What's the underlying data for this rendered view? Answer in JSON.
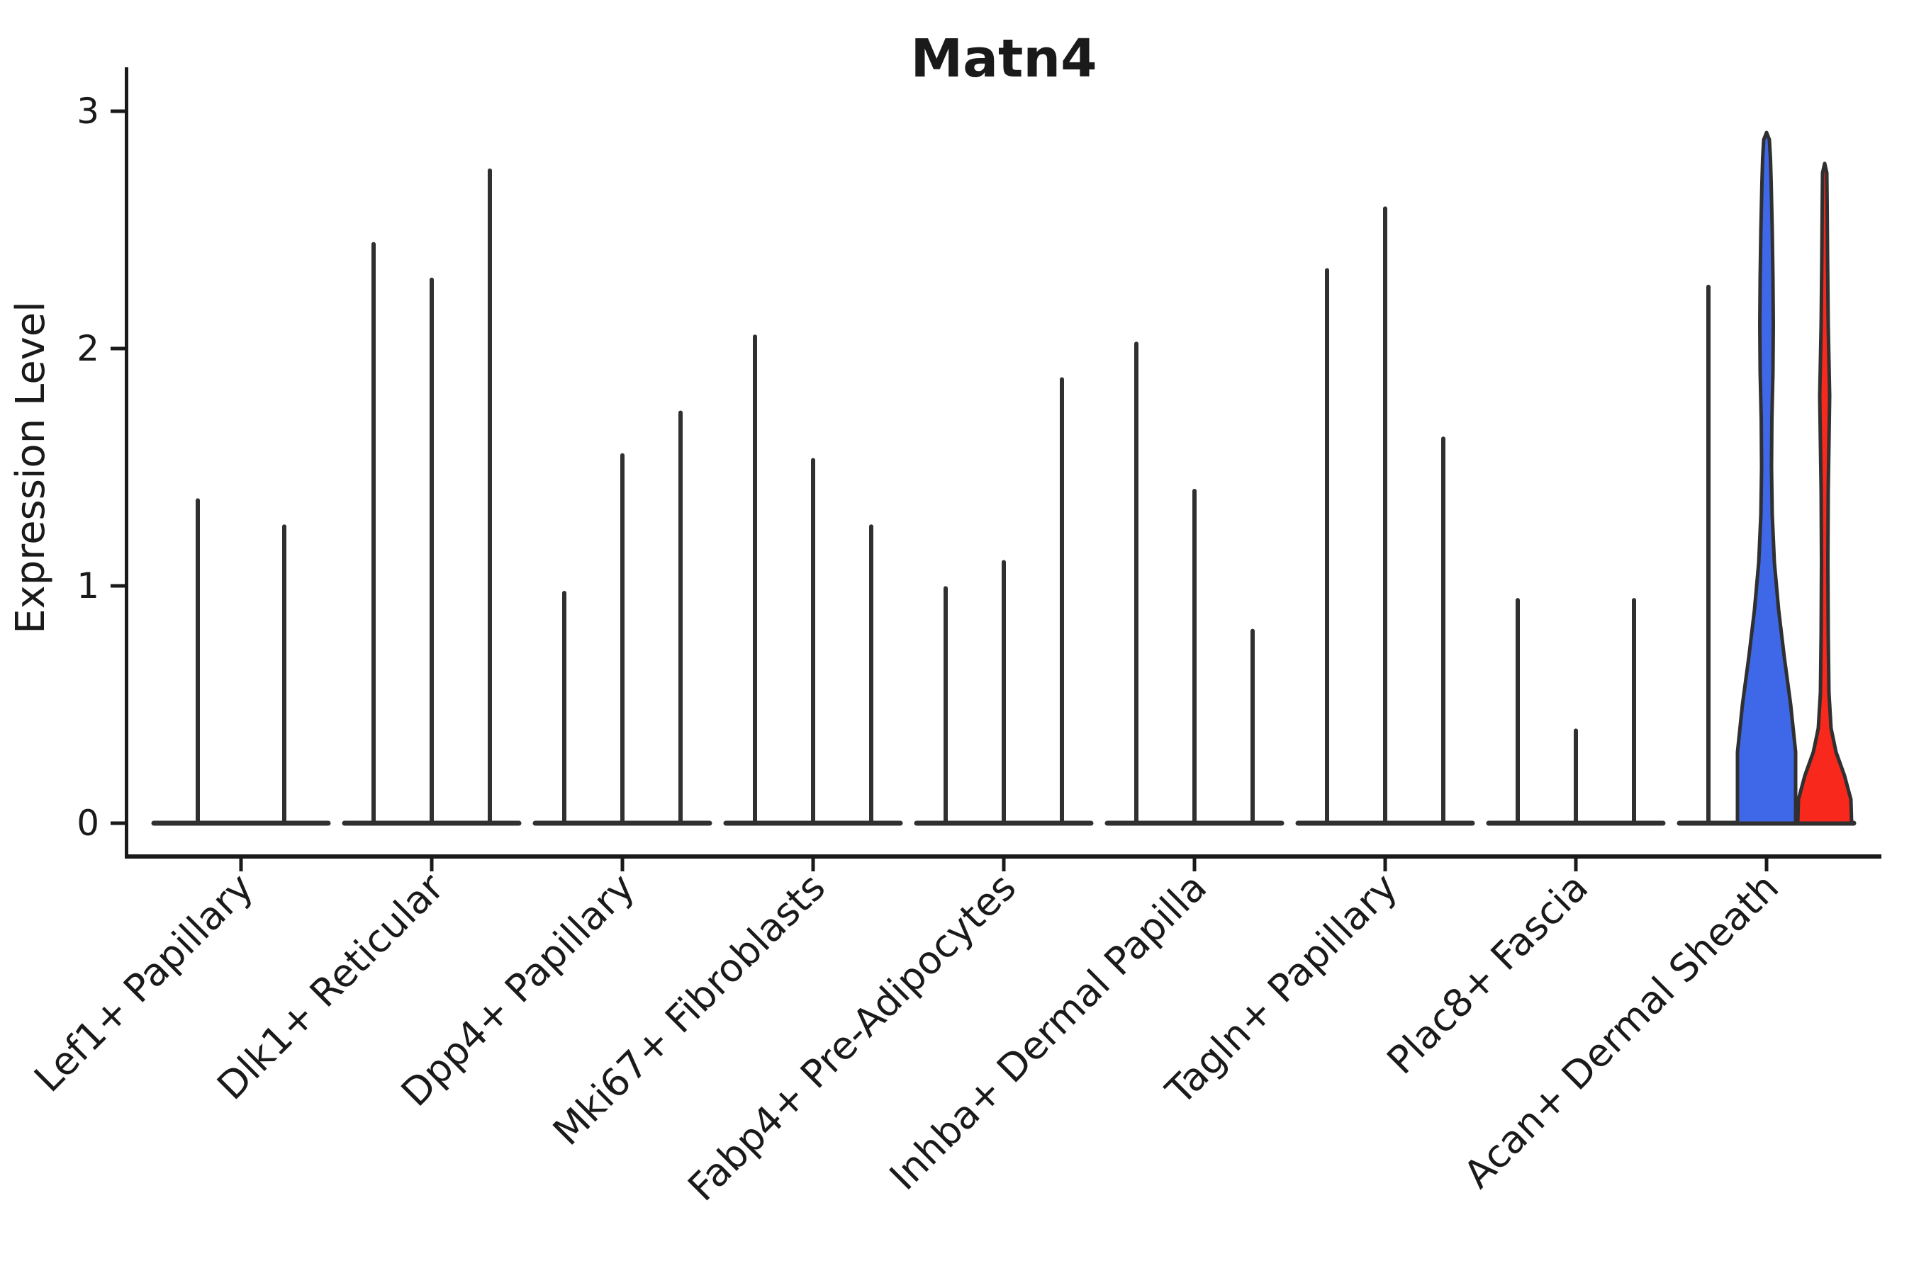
{
  "chart_data": {
    "type": "violin",
    "title": "Matn4",
    "ylabel": "Expression Level",
    "ytick_labels": [
      "0",
      "1",
      "2",
      "3"
    ],
    "yticks": [
      0,
      1,
      2,
      3
    ],
    "ylim": [
      -0.15,
      3.18
    ],
    "grid": false,
    "legend": "none",
    "categories": [
      "Lef1+ Papillary",
      "Dlk1+ Reticular",
      "Dpp4+ Papillary",
      "Mki67+ Fibroblasts",
      "Fabp4+ Pre-Adipocytes",
      "Inhba+ Dermal Papilla",
      "Tagln+ Papillary",
      "Plac8+ Fascia",
      "Acan+ Dermal Sheath"
    ],
    "groups": [
      {
        "category": "Lef1+ Papillary",
        "violins": [
          {
            "max": 1.36,
            "style": "spike"
          },
          {
            "max": 1.25,
            "style": "spike"
          }
        ]
      },
      {
        "category": "Dlk1+ Reticular",
        "violins": [
          {
            "max": 2.44,
            "style": "spike"
          },
          {
            "max": 2.29,
            "style": "spike"
          },
          {
            "max": 2.75,
            "style": "spike"
          }
        ]
      },
      {
        "category": "Dpp4+ Papillary",
        "violins": [
          {
            "max": 0.97,
            "style": "spike"
          },
          {
            "max": 1.55,
            "style": "spike"
          },
          {
            "max": 1.73,
            "style": "spike"
          }
        ]
      },
      {
        "category": "Mki67+ Fibroblasts",
        "violins": [
          {
            "max": 2.05,
            "style": "spike"
          },
          {
            "max": 1.53,
            "style": "spike"
          },
          {
            "max": 1.25,
            "style": "spike"
          }
        ]
      },
      {
        "category": "Fabp4+ Pre-Adipocytes",
        "violins": [
          {
            "max": 0.99,
            "style": "spike"
          },
          {
            "max": 1.1,
            "style": "spike"
          },
          {
            "max": 1.87,
            "style": "spike"
          }
        ]
      },
      {
        "category": "Inhba+ Dermal Papilla",
        "violins": [
          {
            "max": 2.02,
            "style": "spike"
          },
          {
            "max": 1.4,
            "style": "spike"
          },
          {
            "max": 0.81,
            "style": "spike"
          }
        ]
      },
      {
        "category": "Tagln+ Papillary",
        "violins": [
          {
            "max": 2.33,
            "style": "spike"
          },
          {
            "max": 2.59,
            "style": "spike"
          },
          {
            "max": 1.62,
            "style": "spike"
          }
        ]
      },
      {
        "category": "Plac8+ Fascia",
        "violins": [
          {
            "max": 0.94,
            "style": "spike"
          },
          {
            "max": 0.39,
            "style": "spike"
          },
          {
            "max": 0.94,
            "style": "spike"
          }
        ]
      },
      {
        "category": "Acan+ Dermal Sheath",
        "violins": [
          {
            "max": 2.26,
            "style": "spike"
          },
          {
            "max": 2.91,
            "style": "filled",
            "fill": "#3E68E8",
            "profile": [
              [
                0,
                41
              ],
              [
                0.3,
                41
              ],
              [
                0.5,
                34
              ],
              [
                0.7,
                25
              ],
              [
                0.9,
                17
              ],
              [
                1.1,
                11
              ],
              [
                1.3,
                8
              ],
              [
                1.5,
                7
              ],
              [
                1.7,
                7.5
              ],
              [
                1.9,
                9
              ],
              [
                2.1,
                9.5
              ],
              [
                2.3,
                9
              ],
              [
                2.5,
                8
              ],
              [
                2.7,
                6.5
              ],
              [
                2.8,
                5.5
              ],
              [
                2.88,
                4
              ],
              [
                2.91,
                0
              ]
            ]
          },
          {
            "max": 2.78,
            "style": "filled",
            "fill": "#F8281C",
            "profile": [
              [
                0,
                38
              ],
              [
                0.1,
                37
              ],
              [
                0.2,
                28
              ],
              [
                0.3,
                16
              ],
              [
                0.4,
                9
              ],
              [
                0.55,
                6
              ],
              [
                0.8,
                5
              ],
              [
                1.1,
                4.5
              ],
              [
                1.4,
                5
              ],
              [
                1.6,
                6
              ],
              [
                1.8,
                7
              ],
              [
                1.95,
                6
              ],
              [
                2.1,
                5
              ],
              [
                2.4,
                4
              ],
              [
                2.6,
                3.5
              ],
              [
                2.74,
                3
              ],
              [
                2.78,
                0
              ]
            ]
          }
        ]
      }
    ],
    "colors": {
      "violin_stroke": "#303030",
      "axis": "#1a1a1a",
      "blue_fill": "#3E68E8",
      "red_fill": "#F8281C",
      "background": "#ffffff"
    }
  }
}
